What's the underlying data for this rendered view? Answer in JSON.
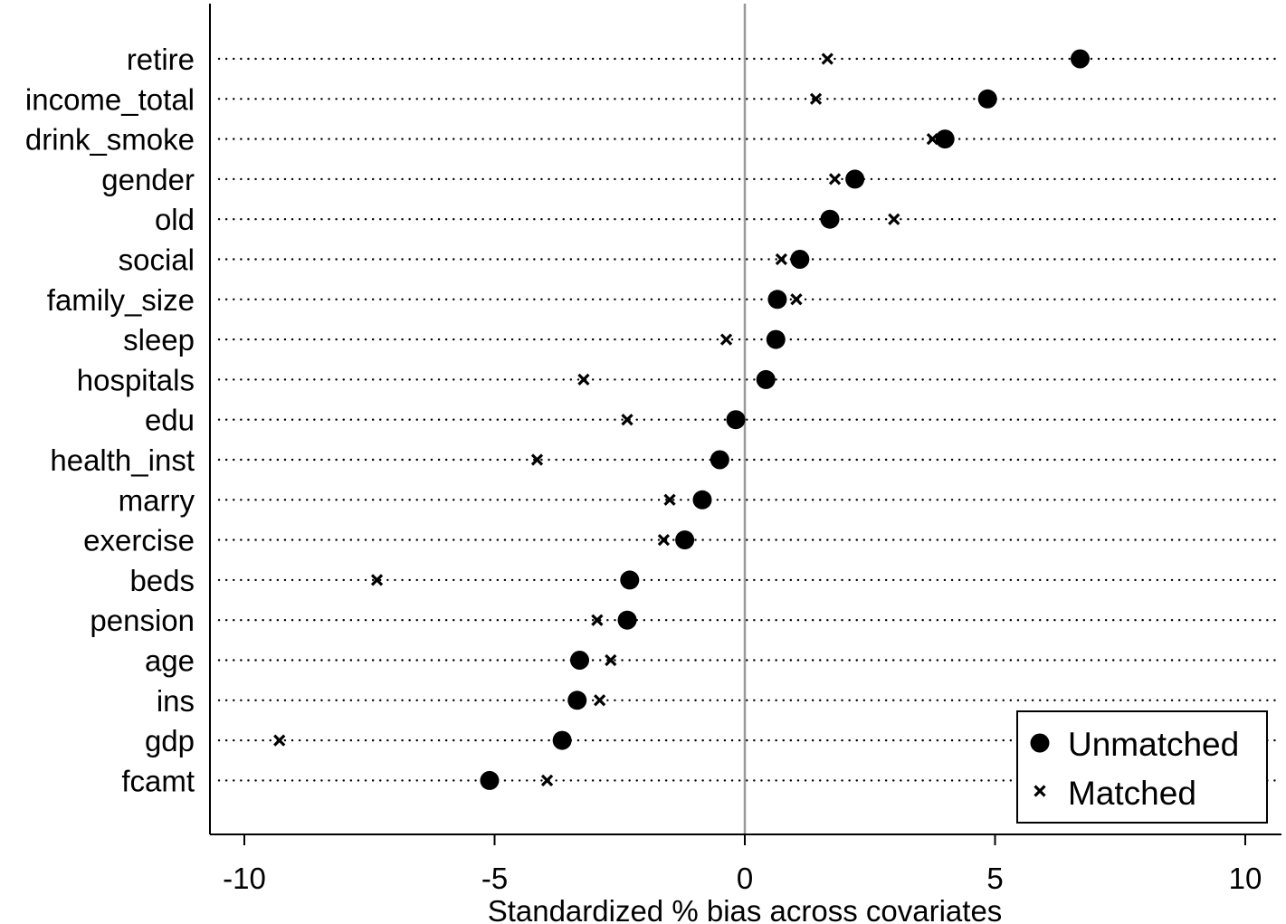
{
  "chart_data": {
    "type": "scatter",
    "categories": [
      "retire",
      "income_total",
      "drink_smoke",
      "gender",
      "old",
      "social",
      "family_size",
      "sleep",
      "hospitals",
      "edu",
      "health_inst",
      "marry",
      "exercise",
      "beds",
      "pension",
      "age",
      "ins",
      "gdp",
      "fcamt"
    ],
    "series": [
      {
        "name": "Unmatched",
        "marker": "circle",
        "values": [
          6.7,
          4.85,
          4.0,
          2.2,
          1.7,
          1.1,
          0.65,
          0.62,
          0.42,
          -0.18,
          -0.5,
          -0.85,
          -1.2,
          -2.3,
          -2.35,
          -3.3,
          -3.35,
          -3.65,
          -5.1
        ]
      },
      {
        "name": "Matched",
        "marker": "x",
        "values": [
          1.65,
          1.42,
          3.75,
          1.8,
          2.98,
          0.73,
          1.03,
          -0.37,
          -3.22,
          -2.35,
          -4.15,
          -1.5,
          -1.62,
          -7.35,
          -2.95,
          -2.68,
          -2.9,
          -9.3,
          -3.95
        ]
      }
    ],
    "xlabel": "Standardized % bias across covariates",
    "xlim": [
      -10.7,
      10.6
    ],
    "xticks": [
      -10,
      -5,
      0,
      5,
      10
    ],
    "xtick_labels": [
      "-10",
      "-5",
      "0",
      "5",
      "10"
    ],
    "reference_line": 0,
    "legend": {
      "position": "bottom-right",
      "entries": [
        "Unmatched",
        "Matched"
      ]
    },
    "colors": {
      "markers": "#000000",
      "zero_line": "#999999",
      "background": "#ffffff"
    }
  }
}
